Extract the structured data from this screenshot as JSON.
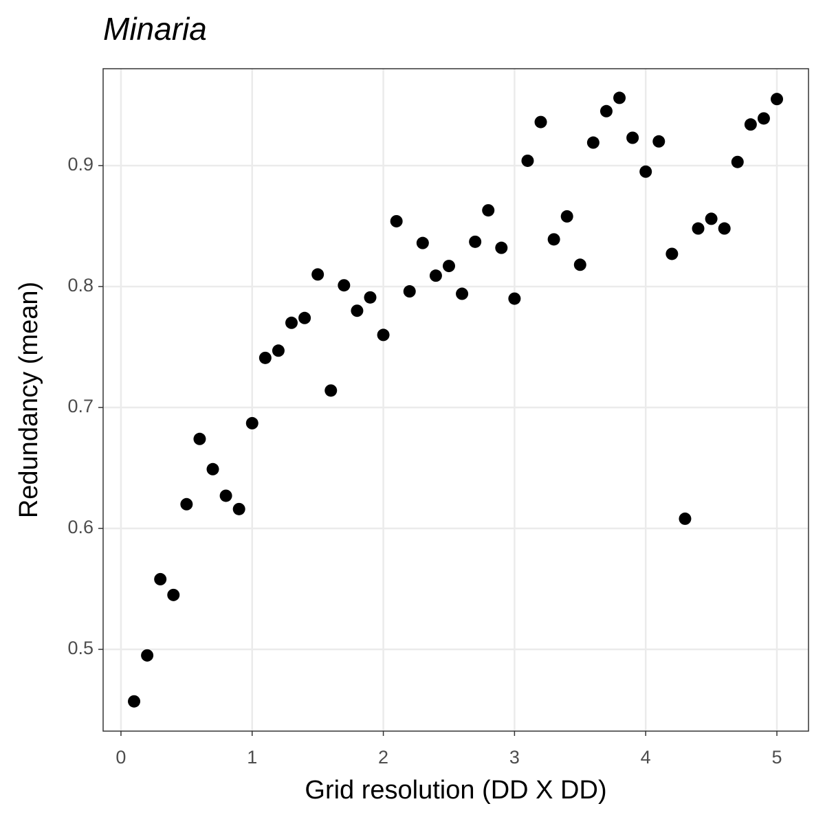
{
  "chart_data": {
    "type": "scatter",
    "title": "Minaria",
    "x_label": "Grid resolution (DD X DD)",
    "y_label": "Redundancy (mean)",
    "x": [
      0.1,
      0.2,
      0.3,
      0.4,
      0.5,
      0.6,
      0.7,
      0.8,
      0.9,
      1.0,
      1.1,
      1.2,
      1.3,
      1.4,
      1.5,
      1.6,
      1.7,
      1.8,
      1.9,
      2.0,
      2.1,
      2.2,
      2.3,
      2.4,
      2.5,
      2.6,
      2.7,
      2.8,
      2.9,
      3.0,
      3.1,
      3.2,
      3.3,
      3.4,
      3.5,
      3.6,
      3.7,
      3.8,
      3.9,
      4.0,
      4.1,
      4.2,
      4.3,
      4.4,
      4.5,
      4.6,
      4.7,
      4.8,
      4.9,
      5.0
    ],
    "values": [
      0.457,
      0.495,
      0.558,
      0.545,
      0.62,
      0.674,
      0.649,
      0.627,
      0.616,
      0.687,
      0.741,
      0.747,
      0.77,
      0.774,
      0.81,
      0.714,
      0.801,
      0.78,
      0.791,
      0.76,
      0.854,
      0.796,
      0.836,
      0.809,
      0.817,
      0.794,
      0.837,
      0.863,
      0.832,
      0.79,
      0.904,
      0.936,
      0.839,
      0.858,
      0.818,
      0.919,
      0.945,
      0.956,
      0.923,
      0.895,
      0.92,
      0.827,
      0.608,
      0.848,
      0.856,
      0.848,
      0.903,
      0.934,
      0.939,
      0.955
    ],
    "color": "#000000",
    "xlim": [
      -0.136,
      5.241
    ],
    "ylim": [
      0.4324,
      0.9801
    ],
    "xticks": [
      0,
      1,
      2,
      3,
      4,
      5
    ],
    "yticks": [
      0.5,
      0.6,
      0.7,
      0.8,
      0.9
    ],
    "grid": true
  }
}
